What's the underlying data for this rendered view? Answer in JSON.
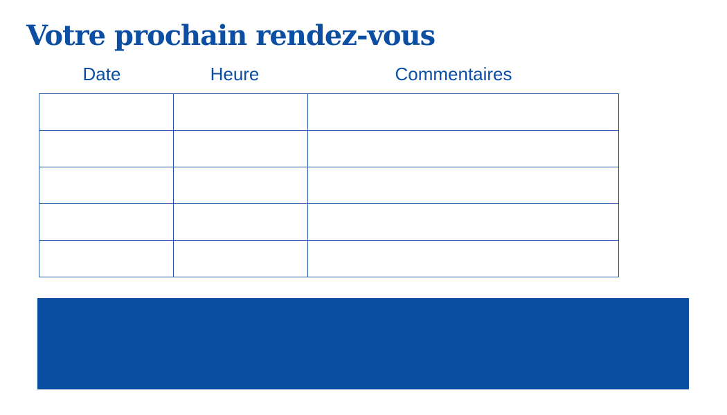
{
  "title": "Votre prochain rendez-vous",
  "table": {
    "columns": [
      "Date",
      "Heure",
      "Commentaires"
    ],
    "row_count": 5
  },
  "colors": {
    "accent": "#0a4ea2"
  }
}
